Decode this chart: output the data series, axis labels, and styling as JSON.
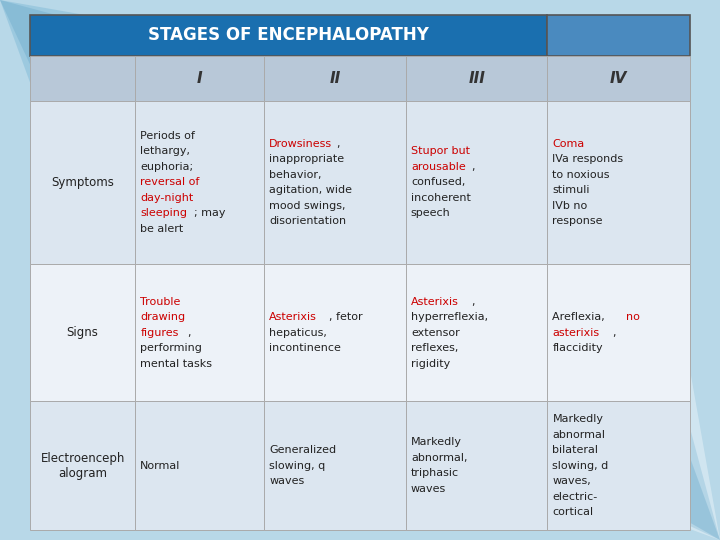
{
  "title": "STAGES OF ENCEPHALOPATHY",
  "title_bg": "#1a6faf",
  "title_color": "#FFFFFF",
  "stage_header_bg": "#b8c8d8",
  "stage_header_color": "#333333",
  "row_bg_light": "#dce6f0",
  "row_bg_white": "#edf2f8",
  "border_color": "#999999",
  "fig_bg": "#b8d8e8",
  "dark_text": "#222222",
  "red_text": "#cc0000",
  "stages": [
    "I",
    "II",
    "III",
    "IV"
  ],
  "rows": [
    {
      "label": "Symptoms",
      "bg": "#dce6f0",
      "cells": [
        [
          {
            "text": "Periods of\nlethargy,\neuphoria;\n",
            "color": "#222222"
          },
          {
            "text": "reversal of\nday-night\nsleeping",
            "color": "#cc0000"
          },
          {
            "text": "; may\nbe alert",
            "color": "#222222"
          }
        ],
        [
          {
            "text": "Drowsiness",
            "color": "#cc0000"
          },
          {
            "text": ",\ninappropriate\nbehavior,\nagitation, wide\nmood swings,\ndisorientation",
            "color": "#222222"
          }
        ],
        [
          {
            "text": "Stupor but\narousable",
            "color": "#cc0000"
          },
          {
            "text": ",\nconfused,\nincoherent\nspeech",
            "color": "#222222"
          }
        ],
        [
          {
            "text": "Coma\n",
            "color": "#cc0000"
          },
          {
            "text": "IVa responds\nto noxious\nstimuli\nIVb no\nresponse",
            "color": "#222222"
          }
        ]
      ]
    },
    {
      "label": "Signs",
      "bg": "#edf2f8",
      "cells": [
        [
          {
            "text": "Trouble\ndrawing\nfigures",
            "color": "#cc0000"
          },
          {
            "text": ",\nperforming\nmental tasks",
            "color": "#222222"
          }
        ],
        [
          {
            "text": "Asterixis",
            "color": "#cc0000"
          },
          {
            "text": ", fetor\nhepaticus,\nincontinence",
            "color": "#222222"
          }
        ],
        [
          {
            "text": "Asterixis",
            "color": "#cc0000"
          },
          {
            "text": ",\nhyperreflexia,\nextensor\nreflexes,\nrigidity",
            "color": "#222222"
          }
        ],
        [
          {
            "text": "Areflexia, ",
            "color": "#222222"
          },
          {
            "text": "no\nasterixis",
            "color": "#cc0000"
          },
          {
            "text": ",\nflaccidity",
            "color": "#222222"
          }
        ]
      ]
    },
    {
      "label": "Electroenceph\nalogram",
      "bg": "#dce6f0",
      "cells": [
        [
          {
            "text": "Normal",
            "color": "#222222"
          }
        ],
        [
          {
            "text": "Generalized\nslowing, q\nwaves",
            "color": "#222222"
          }
        ],
        [
          {
            "text": "Markedly\nabnormal,\ntriphasic\nwaves",
            "color": "#222222"
          }
        ],
        [
          {
            "text": "Markedly\nabnormal\nbilateral\nslowing, d\nwaves,\nelectric-\ncortical",
            "color": "#222222"
          }
        ]
      ]
    }
  ]
}
